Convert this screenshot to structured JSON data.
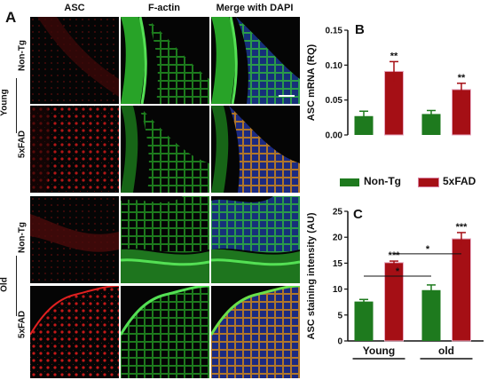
{
  "panel_a": {
    "letter": "A",
    "columns": [
      "ASC",
      "F-actin",
      "Merge with DAPI"
    ],
    "rows": [
      {
        "group": "Young",
        "genotype": "Non-Tg"
      },
      {
        "group": "Young",
        "genotype": "5xFAD"
      },
      {
        "group": "Old",
        "genotype": "Non-Tg"
      },
      {
        "group": "Old",
        "genotype": "5xFAD"
      }
    ],
    "colors": {
      "asc": "#d11b1b",
      "factin": "#2fbf2f",
      "dapi": "#3a5fe0"
    }
  },
  "legend": {
    "items": [
      {
        "label": "Non-Tg",
        "color": "#1e7a1e"
      },
      {
        "label": "5xFAD",
        "color": "#a50f15"
      }
    ]
  },
  "chart_data": [
    {
      "panel": "B",
      "type": "bar",
      "ylabel": "ASC mRNA (RQ)",
      "ylim": [
        0,
        0.15
      ],
      "yticks": [
        "0.00",
        "0.05",
        "0.10",
        "0.15"
      ],
      "groups": 2,
      "series": [
        {
          "name": "Non-Tg",
          "values": [
            0.027,
            0.03
          ],
          "errors": [
            0.007,
            0.005
          ]
        },
        {
          "name": "5xFAD",
          "values": [
            0.091,
            0.065
          ],
          "errors": [
            0.014,
            0.009
          ]
        }
      ],
      "significance": [
        null,
        null,
        "**",
        "**"
      ]
    },
    {
      "panel": "C",
      "type": "bar",
      "categories": [
        "Young",
        "old"
      ],
      "ylabel": "ASC staining intensity (AU)",
      "ylim": [
        0,
        25
      ],
      "yticks": [
        "0",
        "5",
        "10",
        "15",
        "20",
        "25"
      ],
      "series": [
        {
          "name": "Non-Tg",
          "values": [
            7.6,
            9.8
          ],
          "errors": [
            0.4,
            1.0
          ]
        },
        {
          "name": "5xFAD",
          "values": [
            15.1,
            19.7
          ],
          "errors": [
            0.3,
            1.2
          ]
        }
      ],
      "significance": [
        null,
        null,
        "***",
        "***"
      ],
      "comparisons": [
        {
          "label": "*",
          "from": "Young Non-Tg",
          "to": "old Non-Tg"
        },
        {
          "label": "*",
          "from": "Young 5xFAD",
          "to": "old 5xFAD"
        }
      ]
    }
  ]
}
